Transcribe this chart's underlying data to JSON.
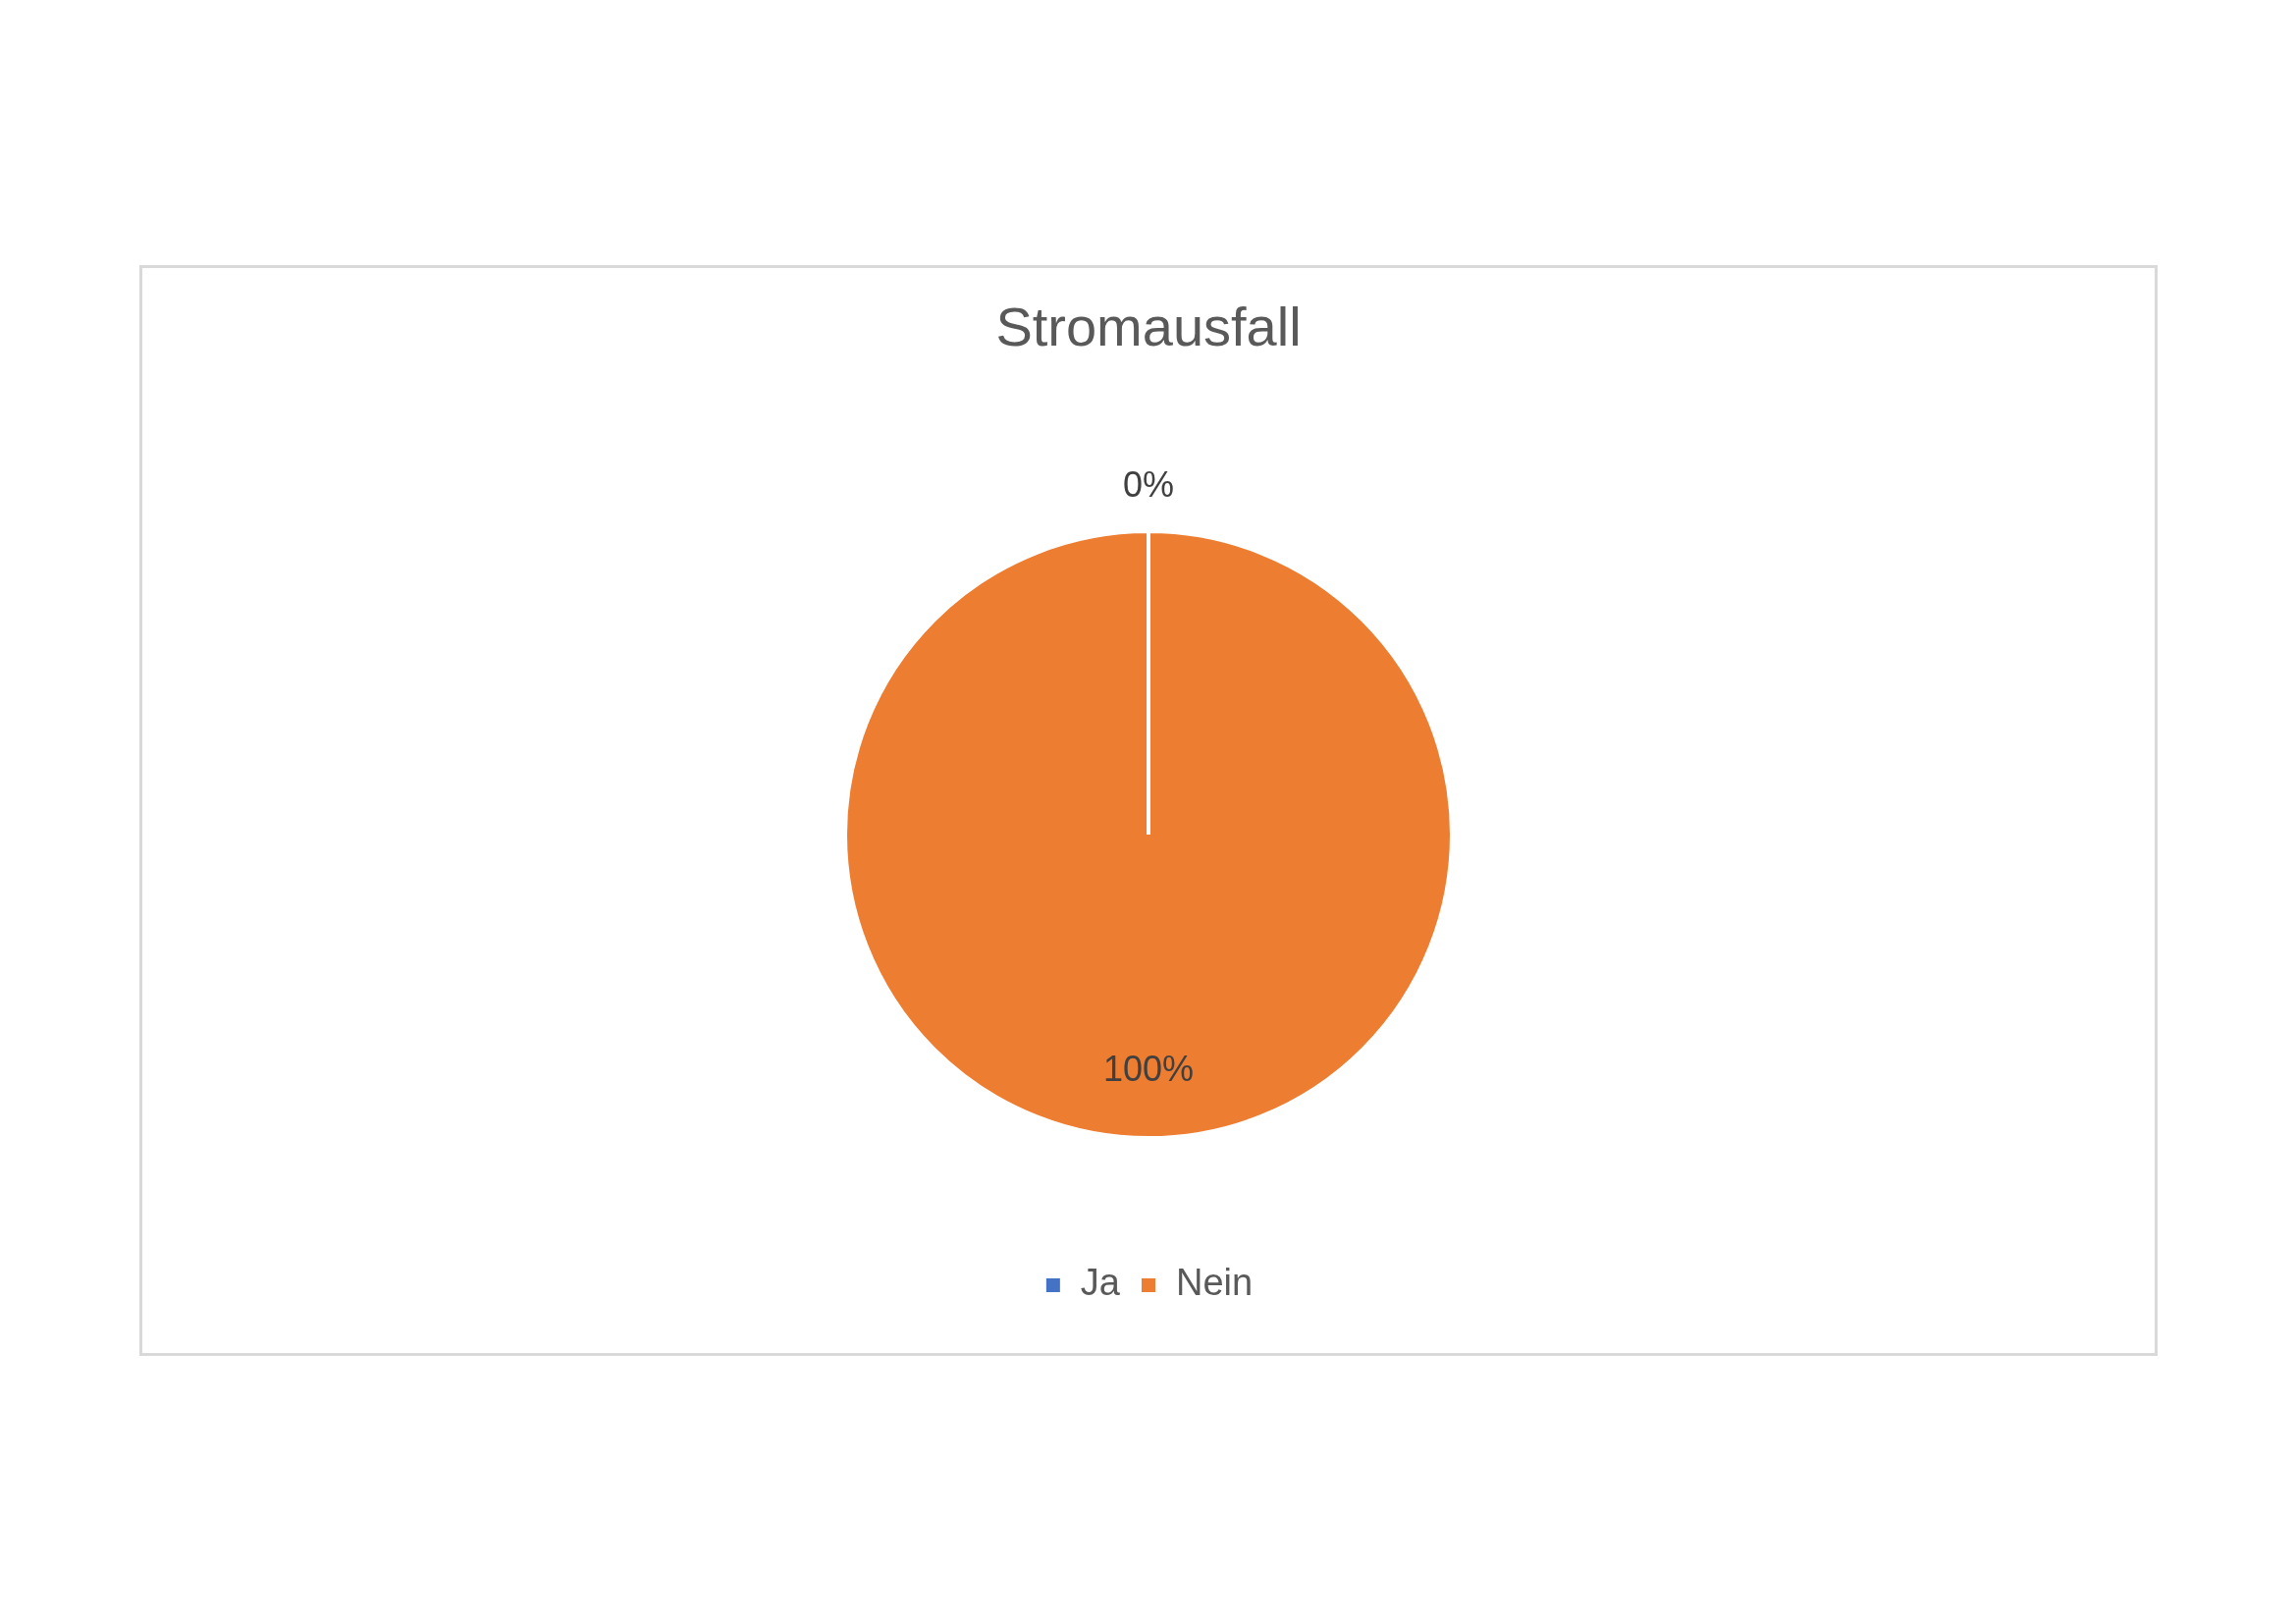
{
  "chart_data": {
    "type": "pie",
    "title": "Stromausfall",
    "categories": [
      "Ja",
      "Nein"
    ],
    "values": [
      0,
      100
    ],
    "colors": [
      "#4472c4",
      "#ed7d31"
    ],
    "value_labels": [
      "0%",
      "100%"
    ],
    "legend": "bottom"
  }
}
